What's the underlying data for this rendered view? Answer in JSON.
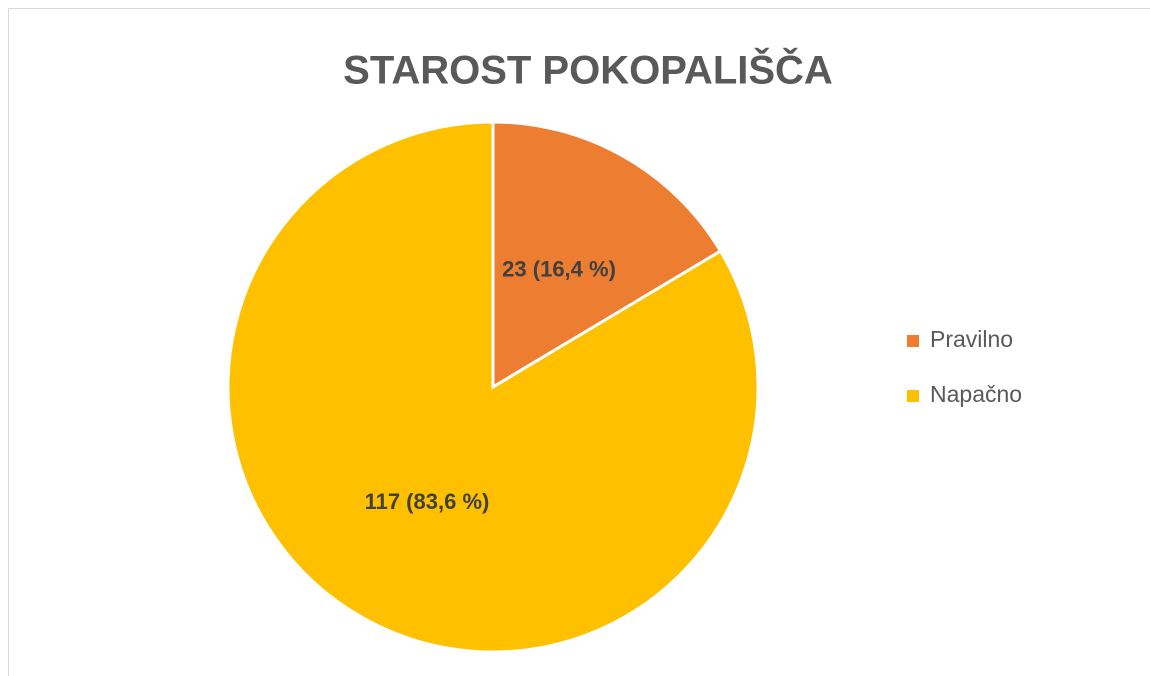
{
  "chart_data": {
    "type": "pie",
    "title": "STAROST POKOPALIŠČA",
    "categories": [
      "Pravilno",
      "Napačno"
    ],
    "values": [
      23,
      117
    ],
    "value_labels": [
      "23 (16,4 %)",
      "117 (83,6 %)"
    ],
    "colors": [
      "#ed7d31",
      "#ffc000"
    ],
    "legend": "right"
  }
}
